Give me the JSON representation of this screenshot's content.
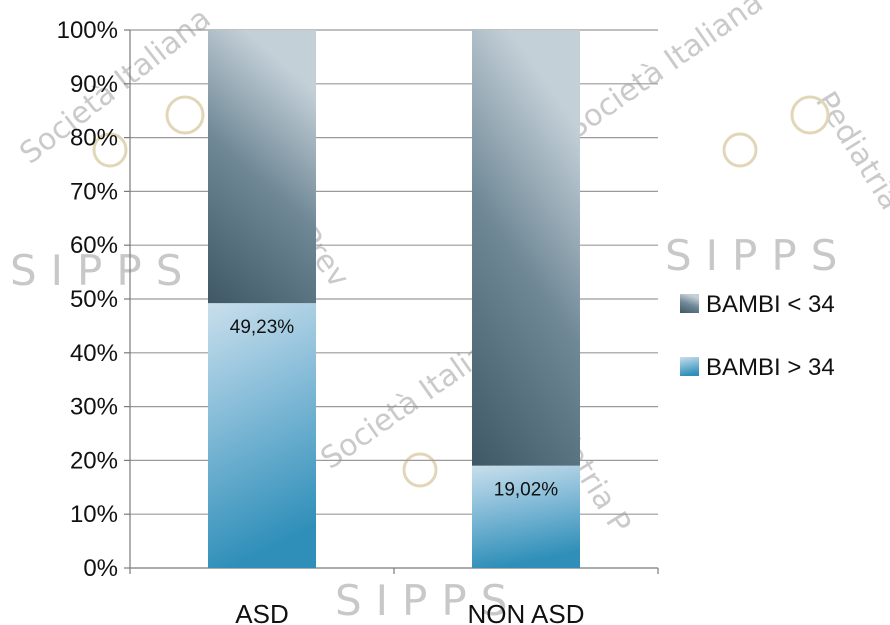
{
  "chart_data": {
    "type": "bar",
    "stacked": true,
    "percent_scale": true,
    "categories": [
      "ASD",
      "NON ASD"
    ],
    "series": [
      {
        "name": "BAMBI > 34",
        "values": [
          49.23,
          19.02
        ],
        "labels": [
          "49,23%",
          "19,02%"
        ],
        "color": "#5ea7cc"
      },
      {
        "name": "BAMBI < 34",
        "values": [
          50.77,
          80.98
        ],
        "color": "#5b7482"
      }
    ],
    "ylim": [
      0,
      100
    ],
    "yticks": [
      0,
      10,
      20,
      30,
      40,
      50,
      60,
      70,
      80,
      90,
      100
    ],
    "ytick_labels": [
      "0%",
      "10%",
      "20%",
      "30%",
      "40%",
      "50%",
      "60%",
      "70%",
      "80%",
      "90%",
      "100%"
    ],
    "grid": true,
    "legend_position": "right",
    "legend_order": [
      "BAMBI < 34",
      "BAMBI > 34"
    ]
  },
  "watermark": {
    "lettering": [
      "Società Italiana di Pediatria Preventiva e Sociale",
      "SIPPS"
    ]
  }
}
